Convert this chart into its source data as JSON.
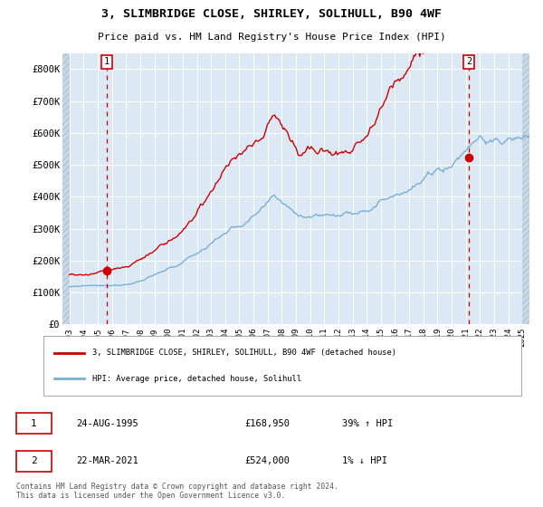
{
  "title": "3, SLIMBRIDGE CLOSE, SHIRLEY, SOLIHULL, B90 4WF",
  "subtitle": "Price paid vs. HM Land Registry's House Price Index (HPI)",
  "legend_label_red": "3, SLIMBRIDGE CLOSE, SHIRLEY, SOLIHULL, B90 4WF (detached house)",
  "legend_label_blue": "HPI: Average price, detached house, Solihull",
  "transaction1_date": "24-AUG-1995",
  "transaction1_price": "£168,950",
  "transaction1_hpi": "39% ↑ HPI",
  "transaction2_date": "22-MAR-2021",
  "transaction2_price": "£524,000",
  "transaction2_hpi": "1% ↓ HPI",
  "footer": "Contains HM Land Registry data © Crown copyright and database right 2024.\nThis data is licensed under the Open Government Licence v3.0.",
  "red_color": "#cc0000",
  "blue_color": "#7aafd4",
  "bg_color": "#dce9f5",
  "hatch_color": "#adc5d8",
  "grid_color": "#ffffff",
  "ylim": [
    0,
    850000
  ],
  "xlim_start": 1992.5,
  "xlim_end": 2025.5,
  "transaction1_year": 1995.64,
  "transaction2_year": 2021.21,
  "transaction1_price_val": 168950,
  "transaction2_price_val": 524000,
  "yticks": [
    0,
    100000,
    200000,
    300000,
    400000,
    500000,
    600000,
    700000,
    800000
  ],
  "ytick_labels": [
    "£0",
    "£100K",
    "£200K",
    "£300K",
    "£400K",
    "£500K",
    "£600K",
    "£700K",
    "£800K"
  ],
  "xticks": [
    1993,
    1994,
    1995,
    1996,
    1997,
    1998,
    1999,
    2000,
    2001,
    2002,
    2003,
    2004,
    2005,
    2006,
    2007,
    2008,
    2009,
    2010,
    2011,
    2012,
    2013,
    2014,
    2015,
    2016,
    2017,
    2018,
    2019,
    2020,
    2021,
    2022,
    2023,
    2024,
    2025
  ]
}
